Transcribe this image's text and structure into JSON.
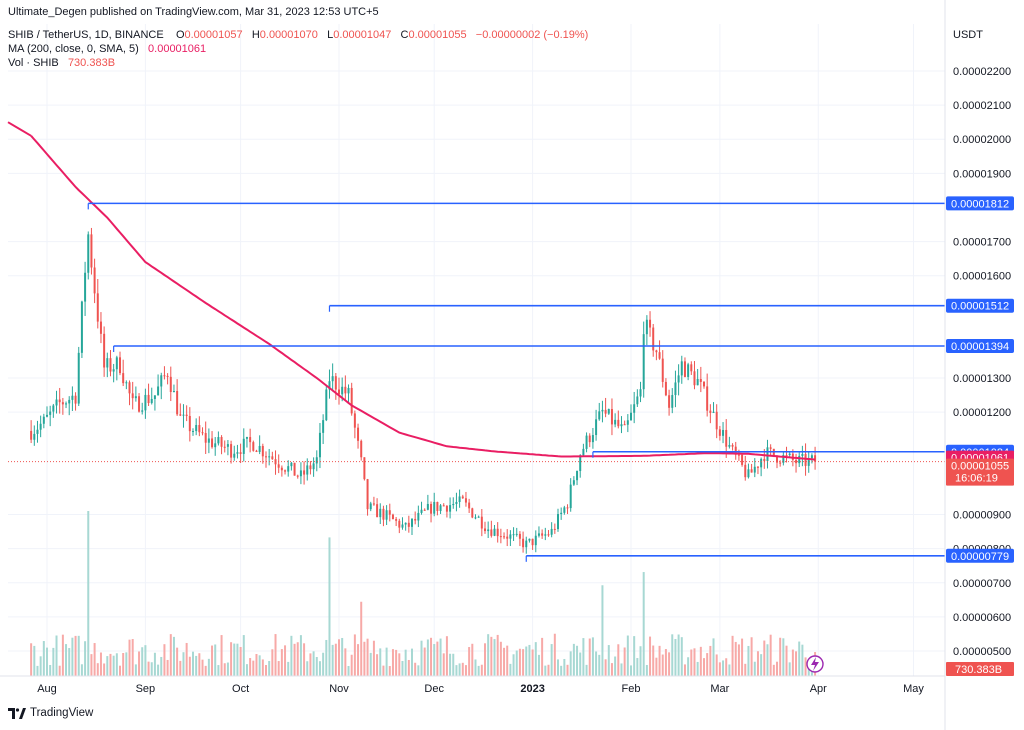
{
  "header": {
    "published": "Ultimate_Degen published on TradingView.com, Mar 31, 2023 12:53 UTC+5",
    "symbol_line": "SHIB / TetherUS, 1D, BINANCE",
    "ohlc": {
      "o_label": "O",
      "o": "0.00001057",
      "h_label": "H",
      "h": "0.00001070",
      "l_label": "L",
      "l": "0.00001047",
      "c_label": "C",
      "c": "0.00001055",
      "change": "−0.00000002 (−0.19%)"
    },
    "ma_line": {
      "label": "MA (200, close, 0, SMA, 5)",
      "value": "0.00001061"
    },
    "vol_line": {
      "label": "Vol · SHIB",
      "value": "730.383B"
    }
  },
  "footer": {
    "brand": "TradingView"
  },
  "colors": {
    "up": "#26a69a",
    "down": "#ef5350",
    "ma": "#e91e63",
    "level": "#2962ff",
    "vol_up": "#a7d8d3",
    "vol_down": "#f7a9a7"
  },
  "chart_data": {
    "type": "candlestick",
    "title": "SHIB / TetherUS, 1D, BINANCE",
    "currency_label": "USDT",
    "grid": true,
    "ylim": [
      4.8e-06,
      2.28e-05
    ],
    "y_ticks": [
      "0.00002200",
      "0.00002100",
      "0.00002000",
      "0.00001900",
      "0.00001700",
      "0.00001600",
      "0.00001300",
      "0.00001200",
      "0.00000900",
      "0.00000800",
      "0.00000700",
      "0.00000600",
      "0.00000500"
    ],
    "x_ticks": [
      "Aug",
      "Sep",
      "Oct",
      "Nov",
      "Dec",
      "2023",
      "Feb",
      "Mar",
      "Apr",
      "May"
    ],
    "start_date": "2022-07-27",
    "last_date": "2023-03-31",
    "axis_end_date": "2023-05-15",
    "tick_dates": [
      "2022-08-01",
      "2022-09-01",
      "2022-10-01",
      "2022-11-01",
      "2022-12-01",
      "2023-01-01",
      "2023-02-01",
      "2023-03-01",
      "2023-04-01",
      "2023-05-01"
    ],
    "close_anchors": [
      [
        "2022-07-27",
        1.145e-05
      ],
      [
        "2022-07-31",
        1.17e-05
      ],
      [
        "2022-08-05",
        1.225e-05
      ],
      [
        "2022-08-10",
        1.25e-05
      ],
      [
        "2022-08-13",
        1.62e-05
      ],
      [
        "2022-08-14",
        1.72e-05
      ],
      [
        "2022-08-16",
        1.56e-05
      ],
      [
        "2022-08-19",
        1.33e-05
      ],
      [
        "2022-08-24",
        1.34e-05
      ],
      [
        "2022-08-28",
        1.22e-05
      ],
      [
        "2022-09-04",
        1.25e-05
      ],
      [
        "2022-09-08",
        1.32e-05
      ],
      [
        "2022-09-12",
        1.18e-05
      ],
      [
        "2022-09-20",
        1.12e-05
      ],
      [
        "2022-09-28",
        1.09e-05
      ],
      [
        "2022-10-05",
        1.11e-05
      ],
      [
        "2022-10-12",
        1.06e-05
      ],
      [
        "2022-10-20",
        1.01e-05
      ],
      [
        "2022-10-25",
        1.06e-05
      ],
      [
        "2022-10-29",
        1.3e-05
      ],
      [
        "2022-11-04",
        1.25e-05
      ],
      [
        "2022-11-08",
        1.05e-05
      ],
      [
        "2022-11-10",
        9.2e-06
      ],
      [
        "2022-11-15",
        9e-06
      ],
      [
        "2022-11-22",
        8.6e-06
      ],
      [
        "2022-11-30",
        9.2e-06
      ],
      [
        "2022-12-10",
        9.35e-06
      ],
      [
        "2022-12-18",
        8.6e-06
      ],
      [
        "2022-12-25",
        8.35e-06
      ],
      [
        "2022-12-30",
        8.12e-06
      ],
      [
        "2023-01-07",
        8.5e-06
      ],
      [
        "2023-01-12",
        9.35e-06
      ],
      [
        "2023-01-16",
        1.08e-05
      ],
      [
        "2023-01-23",
        1.2e-05
      ],
      [
        "2023-01-30",
        1.14e-05
      ],
      [
        "2023-02-04",
        1.26e-05
      ],
      [
        "2023-02-05",
        1.46e-05
      ],
      [
        "2023-02-09",
        1.38e-05
      ],
      [
        "2023-02-13",
        1.22e-05
      ],
      [
        "2023-02-17",
        1.34e-05
      ],
      [
        "2023-02-22",
        1.29e-05
      ],
      [
        "2023-02-28",
        1.17e-05
      ],
      [
        "2023-03-05",
        1.08e-05
      ],
      [
        "2023-03-10",
        1.01e-05
      ],
      [
        "2023-03-15",
        1.08e-05
      ],
      [
        "2023-03-20",
        1.07e-05
      ],
      [
        "2023-03-25",
        1.055e-05
      ],
      [
        "2023-03-31",
        1.055e-05
      ]
    ],
    "ma200_anchors": [
      [
        "2022-07-27",
        2.01e-05
      ],
      [
        "2022-08-10",
        1.86e-05
      ],
      [
        "2022-08-20",
        1.77e-05
      ],
      [
        "2022-09-01",
        1.64e-05
      ],
      [
        "2022-09-20",
        1.52e-05
      ],
      [
        "2022-10-10",
        1.4e-05
      ],
      [
        "2022-10-25",
        1.3e-05
      ],
      [
        "2022-11-05",
        1.22e-05
      ],
      [
        "2022-11-20",
        1.14e-05
      ],
      [
        "2022-12-05",
        1.1e-05
      ],
      [
        "2022-12-20",
        1.085e-05
      ],
      [
        "2023-01-10",
        1.07e-05
      ],
      [
        "2023-02-05",
        1.072e-05
      ],
      [
        "2023-02-25",
        1.08e-05
      ],
      [
        "2023-03-10",
        1.078e-05
      ],
      [
        "2023-03-31",
        1.061e-05
      ]
    ],
    "volume_spikes": [
      [
        "2022-08-14",
        1.0
      ],
      [
        "2022-10-29",
        0.84
      ],
      [
        "2023-02-05",
        0.63
      ],
      [
        "2023-01-23",
        0.55
      ],
      [
        "2022-11-08",
        0.45
      ]
    ],
    "levels": [
      {
        "label": "0.00001812",
        "value": 1.812e-05,
        "from": "2022-08-14"
      },
      {
        "label": "0.00001512",
        "value": 1.512e-05,
        "from": "2022-10-29"
      },
      {
        "label": "0.00001394",
        "value": 1.394e-05,
        "from": "2022-08-22"
      },
      {
        "label": "0.00001084",
        "value": 1.084e-05,
        "from": "2023-01-20"
      },
      {
        "label": "0.00000779",
        "value": 7.79e-06,
        "from": "2022-12-30"
      }
    ],
    "last_price": {
      "value": 1.055e-05,
      "label": "0.00001055",
      "countdown": "16:06:19"
    },
    "ma_price": {
      "value": 1.061e-05,
      "label": "0.00001061"
    },
    "volume_label": "730.383B"
  }
}
